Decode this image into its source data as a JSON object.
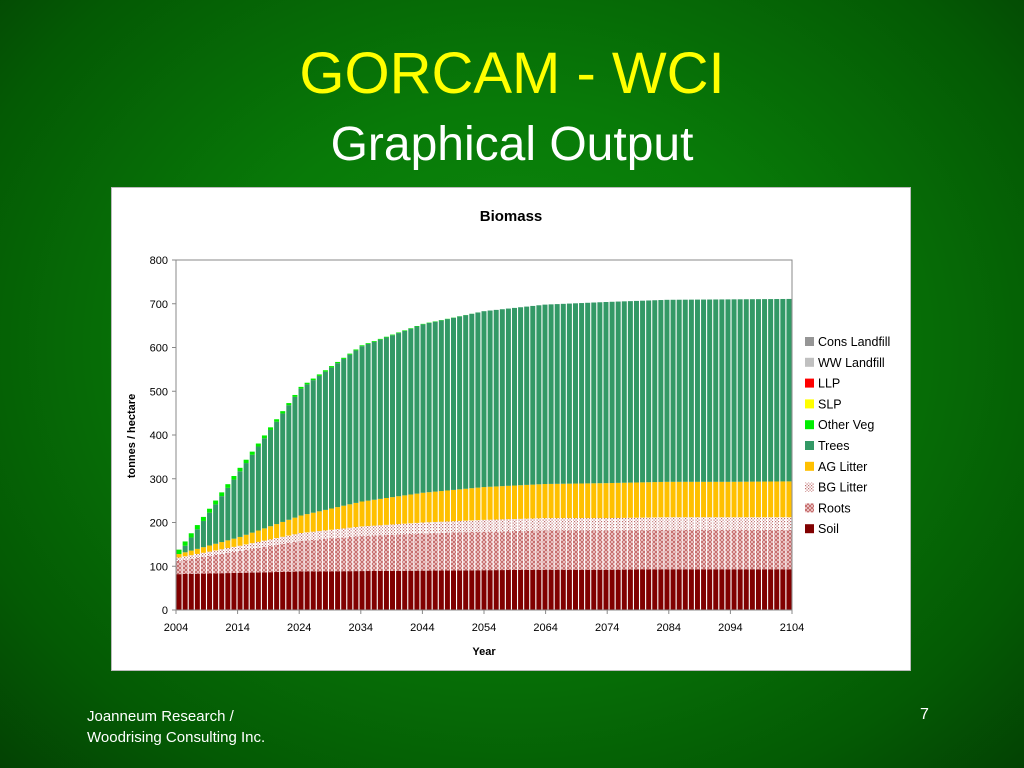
{
  "slide": {
    "title": "GORCAM - WCI",
    "subtitle": "Graphical Output",
    "footer_line1": "Joanneum Research /",
    "footer_line2": "Woodrising Consulting Inc.",
    "page_number": "7"
  },
  "chart_data": {
    "type": "bar",
    "stacked": true,
    "title": "Biomass",
    "xlabel": "Year",
    "ylabel": "tonnes / hectare",
    "ylim": [
      0,
      800
    ],
    "y_ticks": [
      0,
      100,
      200,
      300,
      400,
      500,
      600,
      700,
      800
    ],
    "x_range": [
      2004,
      2104
    ],
    "x_ticks": [
      2004,
      2014,
      2024,
      2034,
      2044,
      2054,
      2064,
      2074,
      2084,
      2094,
      2104
    ],
    "grid": false,
    "legend_position": "right",
    "legend_order": [
      "Cons Landfill",
      "WW Landfill",
      "LLP",
      "SLP",
      "Other Veg",
      "Trees",
      "AG Litter",
      "BG Litter",
      "Roots",
      "Soil"
    ],
    "x": [
      2004,
      2014,
      2024,
      2034,
      2044,
      2054,
      2064,
      2074,
      2084,
      2094,
      2104
    ],
    "series": [
      {
        "name": "Soil",
        "color": "#800000",
        "pattern": "solid",
        "values": [
          82,
          85,
          88,
          89,
          90,
          91,
          92,
          92,
          93,
          93,
          93
        ]
      },
      {
        "name": "Roots",
        "color": "#d9a0a0",
        "pattern": "cross",
        "values": [
          30,
          50,
          70,
          80,
          85,
          88,
          90,
          90,
          90,
          90,
          90
        ]
      },
      {
        "name": "BG Litter",
        "color": "#e8b8b8",
        "pattern": "dots",
        "values": [
          8,
          12,
          18,
          22,
          25,
          27,
          28,
          28,
          29,
          29,
          29
        ]
      },
      {
        "name": "AG Litter",
        "color": "#ffc000",
        "pattern": "solid",
        "values": [
          8,
          20,
          40,
          57,
          68,
          75,
          78,
          80,
          81,
          81,
          82
        ]
      },
      {
        "name": "Trees",
        "color": "#339966",
        "pattern": "solid",
        "values": [
          0,
          150,
          290,
          355,
          385,
          402,
          410,
          414,
          416,
          417,
          417
        ]
      },
      {
        "name": "Other Veg",
        "color": "#00ee00",
        "pattern": "solid",
        "values": [
          10,
          8,
          4,
          2,
          1,
          0,
          0,
          0,
          0,
          0,
          0
        ]
      },
      {
        "name": "SLP",
        "color": "#ffff00",
        "pattern": "solid",
        "values": [
          0,
          0,
          0,
          0,
          0,
          0,
          0,
          0,
          0,
          0,
          0
        ]
      },
      {
        "name": "LLP",
        "color": "#ff0000",
        "pattern": "solid",
        "values": [
          0,
          0,
          0,
          0,
          0,
          0,
          0,
          0,
          0,
          0,
          0
        ]
      },
      {
        "name": "WW Landfill",
        "color": "#c0c0c0",
        "pattern": "solid",
        "values": [
          0,
          0,
          0,
          0,
          0,
          0,
          0,
          0,
          0,
          0,
          0
        ]
      },
      {
        "name": "Cons Landfill",
        "color": "#969696",
        "pattern": "solid",
        "values": [
          0,
          0,
          0,
          0,
          0,
          0,
          0,
          0,
          0,
          0,
          0
        ]
      }
    ]
  }
}
